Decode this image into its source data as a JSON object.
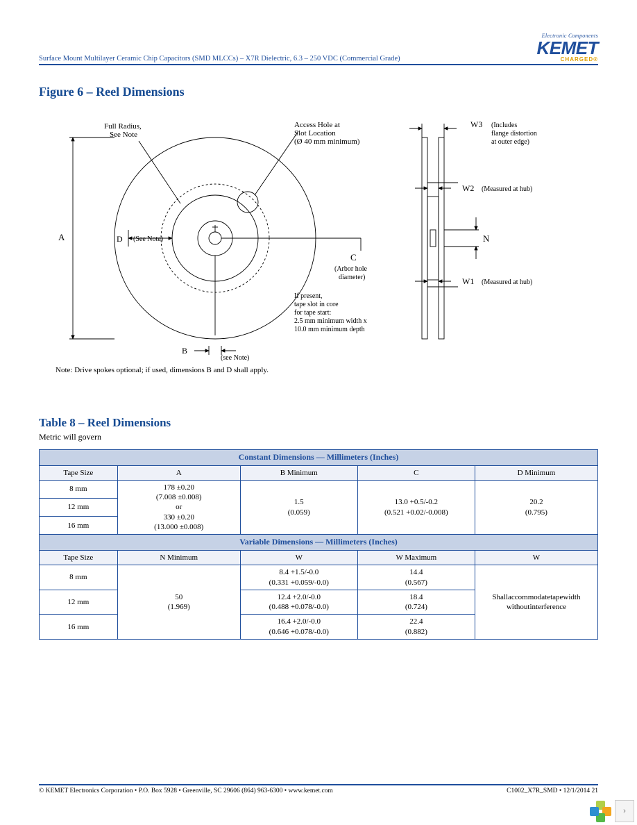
{
  "header": {
    "breadcrumb": "Surface Mount Multilayer Ceramic Chip Capacitors (SMD MLCCs) – X7R Dielectric, 6.3 – 250 VDC (Commercial Grade)",
    "logo_small": "Electronic Components",
    "logo_main": "KEMET",
    "logo_sub": "CHARGED®"
  },
  "figure": {
    "title": "Figure 6 – Reel Dimensions",
    "labels": {
      "full_radius": "Full Radius,\nSee Note",
      "access_hole": "Access Hole at\nSlot Location\n(Ø 40 mm minimum)",
      "tape_slot": "If present,\ntape slot in core\nfor tape start:\n2.5 mm minimum width x\n10.0 mm minimum depth",
      "arbor": "(Arbor hole\ndiameter)",
      "see_note_d": "(See Note)",
      "see_note_b": "(see Note)",
      "w3": "(Includes\nflange distortion\nat outer edge)",
      "w2": "(Measured at hub)",
      "w1": "(Measured at hub)",
      "A": "A",
      "B": "B",
      "C": "C",
      "D": "D",
      "N": "N",
      "W1": "W1",
      "W2": "W2",
      "W3": "W3"
    },
    "note": "Note:  Drive spokes optional; if used, dimensions B and D shall apply.",
    "stroke": "#000000",
    "thin": 0.9,
    "font": "11px"
  },
  "table": {
    "title": "Table 8 – Reel Dimensions",
    "subtitle": "Metric will govern",
    "band1": "Constant Dimensions — Millimeters (Inches)",
    "band2": "Variable Dimensions — Millimeters (Inches)",
    "head1": [
      "Tape Size",
      "A",
      "B Minimum",
      "C",
      "D Minimum"
    ],
    "rows1": {
      "sizes": [
        "8 mm",
        "12 mm",
        "16 mm"
      ],
      "A": "178 ±0.20\n(7.008 ±0.008)\nor\n330 ±0.20\n(13.000 ±0.008)",
      "B": "1.5\n(0.059)",
      "C": "13.0 +0.5/-0.2\n(0.521 +0.02/-0.008)",
      "D": "20.2\n(0.795)"
    },
    "head2": [
      "Tape Size",
      "N Minimum",
      "W",
      "W  Maximum",
      "W"
    ],
    "rows2": {
      "sizes": [
        "8 mm",
        "12 mm",
        "16 mm"
      ],
      "N": "50\n(1.969)",
      "W_a": [
        "8.4 +1.5/-0.0\n(0.331 +0.059/-0.0)",
        "12.4 +2.0/-0.0\n(0.488 +0.078/-0.0)",
        "16.4 +2.0/-0.0\n(0.646 +0.078/-0.0)"
      ],
      "W_b": [
        "14.4\n(0.567)",
        "18.4\n(0.724)",
        "22.4\n(0.882)"
      ],
      "W_c": "Shallaccommodatetapewidth\nwithoutinterference"
    },
    "band_bg": "#c6d2e6",
    "border": "#1f4e9c"
  },
  "footer": {
    "left": "© KEMET Electronics Corporation • P.O. Box 5928 • Greenville, SC 29606 (864) 963-6300 • www.kemet.com",
    "right": "C1002_X7R_SMD • 12/1/2014  21"
  },
  "nav": {
    "petals": [
      "#b1cf49",
      "#f2a61e",
      "#56b948",
      "#2f8fd0"
    ],
    "next": "›"
  }
}
